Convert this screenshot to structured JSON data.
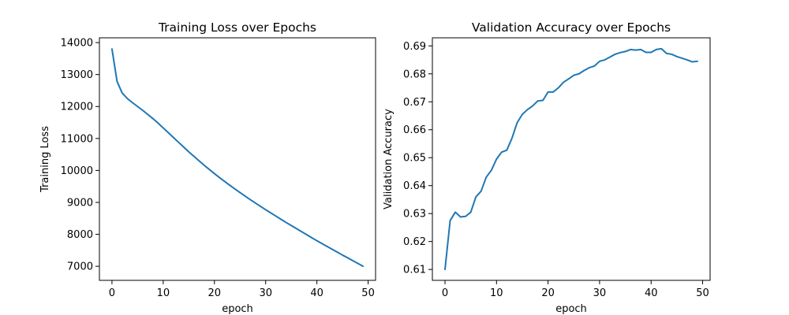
{
  "figure": {
    "background": "#ffffff"
  },
  "chart_data": [
    {
      "type": "line",
      "title": "Training Loss over Epochs",
      "xlabel": "epoch",
      "ylabel": "Training Loss",
      "xlim": [
        -2.45,
        51.45
      ],
      "ylim": [
        6560,
        14150
      ],
      "xticks": [
        0,
        10,
        20,
        30,
        40,
        50
      ],
      "xtick_labels": [
        "0",
        "10",
        "20",
        "30",
        "40",
        "50"
      ],
      "yticks": [
        7000,
        8000,
        9000,
        10000,
        11000,
        12000,
        13000,
        14000
      ],
      "ytick_labels": [
        "7000",
        "8000",
        "9000",
        "10000",
        "11000",
        "12000",
        "13000",
        "14000"
      ],
      "grid": false,
      "series": [
        {
          "color": "#1f77b4",
          "x": [
            0,
            1,
            2,
            3,
            4,
            5,
            6,
            7,
            8,
            9,
            10,
            11,
            12,
            13,
            14,
            15,
            16,
            17,
            18,
            19,
            20,
            21,
            22,
            23,
            24,
            25,
            26,
            27,
            28,
            29,
            30,
            31,
            32,
            33,
            34,
            35,
            36,
            37,
            38,
            39,
            40,
            41,
            42,
            43,
            44,
            45,
            46,
            47,
            48,
            49
          ],
          "y": [
            13800,
            12780,
            12420,
            12250,
            12120,
            12000,
            11880,
            11750,
            11620,
            11480,
            11330,
            11180,
            11030,
            10880,
            10730,
            10580,
            10440,
            10300,
            10160,
            10030,
            9900,
            9775,
            9655,
            9535,
            9420,
            9305,
            9195,
            9085,
            8980,
            8875,
            8770,
            8670,
            8570,
            8470,
            8370,
            8275,
            8180,
            8085,
            7990,
            7895,
            7800,
            7710,
            7620,
            7530,
            7440,
            7350,
            7265,
            7175,
            7090,
            7000
          ]
        }
      ]
    },
    {
      "type": "line",
      "title": "Validation Accuracy over Epochs",
      "xlabel": "epoch",
      "ylabel": "Validation Accuracy",
      "xlim": [
        -2.45,
        51.45
      ],
      "ylim": [
        0.6061,
        0.6929
      ],
      "xticks": [
        0,
        10,
        20,
        30,
        40,
        50
      ],
      "xtick_labels": [
        "0",
        "10",
        "20",
        "30",
        "40",
        "50"
      ],
      "yticks": [
        0.61,
        0.62,
        0.63,
        0.64,
        0.65,
        0.66,
        0.67,
        0.68,
        0.69
      ],
      "ytick_labels": [
        "0.61",
        "0.62",
        "0.63",
        "0.64",
        "0.65",
        "0.66",
        "0.67",
        "0.68",
        "0.69"
      ],
      "grid": false,
      "series": [
        {
          "color": "#1f77b4",
          "x": [
            0,
            1,
            2,
            3,
            4,
            5,
            6,
            7,
            8,
            9,
            10,
            11,
            12,
            13,
            14,
            15,
            16,
            17,
            18,
            19,
            20,
            21,
            22,
            23,
            24,
            25,
            26,
            27,
            28,
            29,
            30,
            31,
            32,
            33,
            34,
            35,
            36,
            37,
            38,
            39,
            40,
            41,
            42,
            43,
            44,
            45,
            46,
            47,
            48,
            49
          ],
          "y": [
            0.61,
            0.6275,
            0.6305,
            0.6288,
            0.629,
            0.6305,
            0.636,
            0.638,
            0.643,
            0.6455,
            0.6495,
            0.652,
            0.6527,
            0.657,
            0.6625,
            0.6655,
            0.6672,
            0.6685,
            0.6703,
            0.6705,
            0.6735,
            0.6735,
            0.675,
            0.677,
            0.6782,
            0.6795,
            0.68,
            0.6812,
            0.6822,
            0.6828,
            0.6845,
            0.685,
            0.686,
            0.687,
            0.6876,
            0.688,
            0.6887,
            0.6885,
            0.6887,
            0.6877,
            0.6877,
            0.6887,
            0.689,
            0.6873,
            0.687,
            0.6862,
            0.6856,
            0.685,
            0.6843,
            0.6845
          ]
        }
      ]
    }
  ]
}
